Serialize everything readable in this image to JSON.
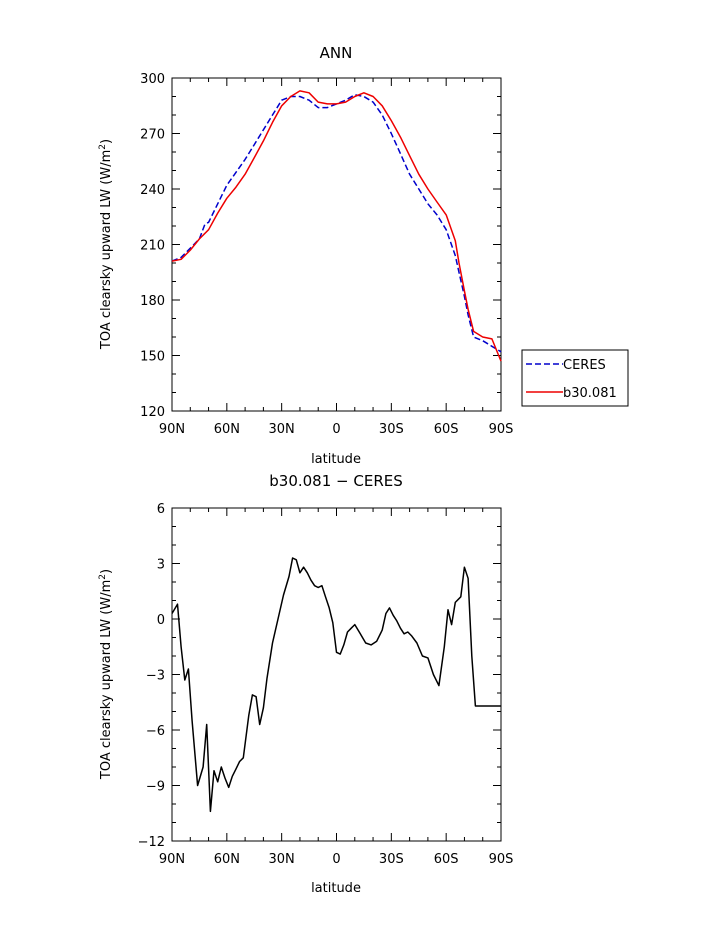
{
  "chart_data": [
    {
      "type": "line",
      "title": "ANN",
      "xlabel": "latitude",
      "ylabel": "TOA clearsky upward LW (W/m",
      "ylabel_sup": "2",
      "ylabel_close": ")",
      "xlim": [
        90,
        -90
      ],
      "ylim": [
        120,
        300
      ],
      "x_ticks": [
        90,
        60,
        30,
        0,
        -30,
        -60,
        -90
      ],
      "x_tick_labels": [
        "90N",
        "60N",
        "30N",
        "0",
        "30S",
        "60S",
        "90S"
      ],
      "y_ticks": [
        120,
        150,
        180,
        210,
        240,
        270,
        300
      ],
      "y_tick_labels": [
        "120",
        "150",
        "180",
        "210",
        "240",
        "270",
        "300"
      ],
      "legend_position": "right-bottom, outside plot",
      "series": [
        {
          "name": "CERES",
          "color": "#0000cc",
          "dash": "dashed",
          "x": [
            90,
            85,
            80,
            75,
            72,
            70,
            65,
            60,
            55,
            50,
            45,
            40,
            35,
            30,
            25,
            20,
            15,
            10,
            5,
            0,
            -5,
            -10,
            -15,
            -20,
            -25,
            -30,
            -35,
            -40,
            -45,
            -50,
            -55,
            -60,
            -65,
            -67,
            -70,
            -72,
            -75,
            -80,
            -85,
            -90
          ],
          "values": [
            201,
            203,
            208,
            213,
            221,
            222,
            232,
            242,
            249,
            256,
            264,
            272,
            280,
            288,
            290,
            290,
            288,
            284,
            284,
            286,
            288,
            291,
            290,
            287,
            280,
            270,
            259,
            248,
            240,
            232,
            226,
            218,
            204,
            195,
            182,
            172,
            160,
            158,
            155,
            152
          ]
        },
        {
          "name": "b30.081",
          "color": "#ee0000",
          "dash": "solid",
          "x": [
            90,
            85,
            80,
            75,
            70,
            65,
            60,
            55,
            50,
            45,
            40,
            35,
            30,
            25,
            20,
            15,
            10,
            5,
            0,
            -5,
            -10,
            -15,
            -20,
            -25,
            -30,
            -35,
            -40,
            -45,
            -50,
            -55,
            -60,
            -65,
            -67,
            -70,
            -72,
            -75,
            -80,
            -85,
            -90
          ],
          "values": [
            201,
            202,
            207,
            213,
            218,
            227,
            235,
            241,
            248,
            257,
            266,
            276,
            285,
            290,
            293,
            292,
            287,
            286,
            286,
            287,
            290,
            292,
            290,
            285,
            277,
            268,
            258,
            248,
            240,
            233,
            226,
            212,
            200,
            185,
            175,
            163,
            160,
            159,
            147
          ]
        }
      ]
    },
    {
      "type": "line",
      "title": "b30.081 − CERES",
      "xlabel": "latitude",
      "ylabel": "TOA clearsky upward LW (W/m",
      "ylabel_sup": "2",
      "ylabel_close": ")",
      "xlim": [
        90,
        -90
      ],
      "ylim": [
        -12,
        6
      ],
      "x_ticks": [
        90,
        60,
        30,
        0,
        -30,
        -60,
        -90
      ],
      "x_tick_labels": [
        "90N",
        "60N",
        "30N",
        "0",
        "30S",
        "60S",
        "90S"
      ],
      "y_ticks": [
        -12,
        -9,
        -6,
        -3,
        0,
        3,
        6
      ],
      "y_tick_labels": [
        "−12",
        "−9",
        "−6",
        "−3",
        "0",
        "3",
        "6"
      ],
      "series": [
        {
          "color": "#000000",
          "dash": "solid",
          "x": [
            90,
            87,
            85,
            83,
            81,
            79,
            76,
            73,
            71,
            69,
            67,
            65,
            63,
            61,
            59,
            57,
            55,
            53,
            51,
            48,
            46,
            44,
            42,
            40,
            38,
            35,
            32,
            29,
            26,
            24,
            22,
            20,
            18,
            16,
            14,
            12,
            10,
            8,
            6,
            4,
            2,
            0,
            -2,
            -4,
            -6,
            -8,
            -10,
            -13,
            -16,
            -19,
            -22,
            -25,
            -27,
            -29,
            -31,
            -33,
            -35,
            -37,
            -39,
            -41,
            -44,
            -47,
            -50,
            -53,
            -56,
            -59,
            -61,
            -63,
            -65,
            -68,
            -70,
            -72,
            -74,
            -76,
            -78,
            -80,
            -82,
            -84,
            -86,
            -88,
            -90
          ],
          "values": [
            0.3,
            0.8,
            -1.5,
            -3.3,
            -2.7,
            -5.5,
            -9.0,
            -8.0,
            -5.7,
            -10.4,
            -8.2,
            -8.8,
            -8.0,
            -8.6,
            -9.1,
            -8.5,
            -8.1,
            -7.7,
            -7.5,
            -5.2,
            -4.1,
            -4.2,
            -5.7,
            -4.8,
            -3.2,
            -1.3,
            0.0,
            1.3,
            2.3,
            3.3,
            3.2,
            2.5,
            2.8,
            2.5,
            2.1,
            1.8,
            1.7,
            1.8,
            1.2,
            0.6,
            -0.2,
            -1.8,
            -1.9,
            -1.4,
            -0.7,
            -0.5,
            -0.3,
            -0.8,
            -1.3,
            -1.4,
            -1.2,
            -0.6,
            0.3,
            0.6,
            0.2,
            -0.1,
            -0.5,
            -0.8,
            -0.7,
            -0.9,
            -1.3,
            -2.0,
            -2.1,
            -3.0,
            -3.6,
            -1.5,
            0.5,
            -0.3,
            0.9,
            1.2,
            2.8,
            2.2,
            -2.0,
            -4.7,
            -4.7,
            -4.7,
            -4.7,
            -4.7,
            -4.7,
            -4.7,
            -4.7
          ]
        }
      ]
    }
  ],
  "legend": {
    "items": [
      {
        "label": "CERES",
        "color": "#0000cc",
        "dash": "dashed"
      },
      {
        "label": "b30.081",
        "color": "#ee0000",
        "dash": "solid"
      }
    ]
  }
}
